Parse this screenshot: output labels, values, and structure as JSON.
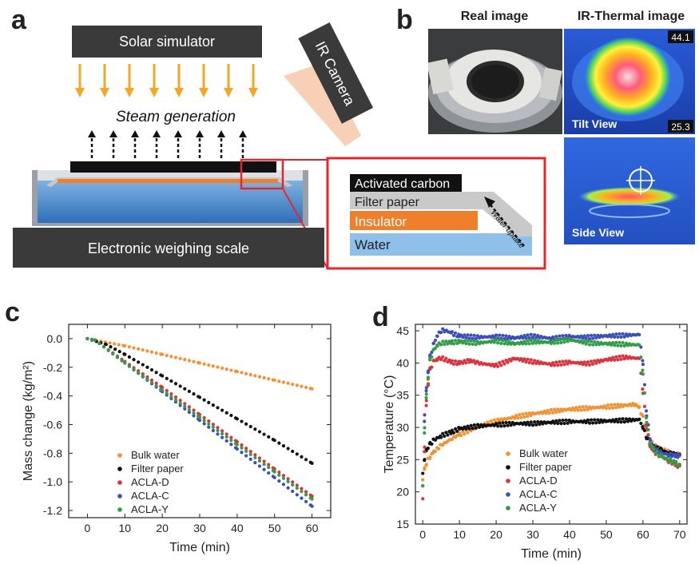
{
  "panel_labels": {
    "a": "a",
    "b": "b",
    "c": "c",
    "d": "d"
  },
  "schematic": {
    "solar_simulator": "Solar simulator",
    "steam_generation": "Steam generation",
    "ir_camera": "IR Camera",
    "weighing_scale": "Electronic weighing scale",
    "inset": {
      "activated_carbon": "Activated carbon",
      "filter_paper": "Filter paper",
      "insulator": "Insulator",
      "water": "Water",
      "water_uptake": "Water uptake"
    },
    "colors": {
      "arrow": "#f5a623",
      "insulator": "#f07f2c",
      "water": "#5b9bd5",
      "inset_border": "#e8252a"
    }
  },
  "photos": {
    "real_image_title": "Real image",
    "ir_image_title": "IR-Thermal image",
    "scale_max": "44.1",
    "scale_min": "25.3",
    "tilt_view": "Tilt View",
    "side_view": "Side View"
  },
  "series_colors": {
    "Bulk water": "#f5922f",
    "Filter paper": "#111111",
    "ACLA-D": "#e0313a",
    "ACLA-C": "#3b4dbf",
    "ACLA-Y": "#2ea043"
  },
  "chart_data": [
    {
      "type": "scatter",
      "panel": "c",
      "xlabel": "Time (min)",
      "ylabel": "Mass change (kg/m²)",
      "xlim": [
        -5,
        65
      ],
      "ylim": [
        -1.25,
        0.1
      ],
      "xticks": [
        0,
        10,
        20,
        30,
        40,
        50,
        60
      ],
      "yticks": [
        0.0,
        -0.2,
        -0.4,
        -0.6,
        -0.8,
        -1.0,
        -1.2
      ],
      "ytick_labels": [
        "0.0",
        "-0.2",
        "-0.4",
        "-0.6",
        "-0.8",
        "-1.0",
        "-1.2"
      ],
      "legend_position": "bottom-left",
      "series": [
        {
          "name": "Bulk water",
          "x": [
            0,
            10,
            20,
            30,
            40,
            50,
            60
          ],
          "y": [
            0.0,
            -0.05,
            -0.11,
            -0.17,
            -0.23,
            -0.29,
            -0.35
          ]
        },
        {
          "name": "Filter paper",
          "x": [
            0,
            5,
            10,
            20,
            30,
            40,
            50,
            60
          ],
          "y": [
            0.0,
            -0.04,
            -0.11,
            -0.26,
            -0.41,
            -0.56,
            -0.71,
            -0.87
          ]
        },
        {
          "name": "ACLA-D",
          "x": [
            0,
            2,
            10,
            20,
            30,
            40,
            50,
            60
          ],
          "y": [
            0.0,
            -0.01,
            -0.16,
            -0.34,
            -0.53,
            -0.72,
            -0.91,
            -1.1
          ]
        },
        {
          "name": "ACLA-C",
          "x": [
            0,
            2,
            10,
            20,
            30,
            40,
            50,
            60
          ],
          "y": [
            0.0,
            -0.01,
            -0.17,
            -0.37,
            -0.57,
            -0.77,
            -0.97,
            -1.17
          ]
        },
        {
          "name": "ACLA-Y",
          "x": [
            0,
            2,
            10,
            20,
            30,
            40,
            50,
            60
          ],
          "y": [
            0.0,
            -0.01,
            -0.17,
            -0.36,
            -0.55,
            -0.74,
            -0.93,
            -1.12
          ]
        }
      ]
    },
    {
      "type": "scatter",
      "panel": "d",
      "xlabel": "Time (min)",
      "ylabel": "Temperature (°C)",
      "xlim": [
        -2,
        72
      ],
      "ylim": [
        15,
        46
      ],
      "xticks": [
        0,
        10,
        20,
        30,
        40,
        50,
        60,
        70
      ],
      "yticks": [
        15,
        20,
        25,
        30,
        35,
        40,
        45
      ],
      "ytick_labels": [
        "15",
        "20",
        "25",
        "30",
        "35",
        "40",
        "45"
      ],
      "legend_position": "bottom-center",
      "series": [
        {
          "name": "Bulk water",
          "x": [
            0,
            0.5,
            1,
            2,
            3,
            5,
            8,
            10,
            15,
            20,
            25,
            30,
            35,
            40,
            45,
            50,
            55,
            58,
            59,
            60,
            61,
            62,
            63,
            65,
            67,
            69,
            70
          ],
          "y": [
            22,
            23.5,
            24.5,
            25.5,
            26.2,
            27.2,
            28.3,
            28.9,
            30.1,
            31.0,
            31.6,
            32.1,
            32.5,
            32.8,
            33.0,
            33.2,
            33.4,
            33.6,
            33.0,
            31.5,
            29.5,
            28.0,
            27.2,
            26.6,
            26.2,
            25.9,
            25.7
          ]
        },
        {
          "name": "Filter paper",
          "x": [
            0,
            0.5,
            1,
            2,
            3,
            5,
            8,
            10,
            15,
            20,
            25,
            30,
            35,
            40,
            45,
            50,
            55,
            59,
            60,
            61,
            62,
            63,
            65,
            67,
            69,
            70
          ],
          "y": [
            23,
            25,
            26.5,
            27.4,
            28.0,
            28.7,
            29.3,
            29.8,
            30.2,
            30.4,
            30.6,
            30.6,
            30.8,
            30.9,
            30.9,
            31.0,
            31.1,
            31.2,
            30.0,
            28.5,
            27.5,
            27.0,
            26.5,
            26.0,
            25.8,
            25.6
          ]
        },
        {
          "name": "ACLA-D",
          "x": [
            0,
            0.5,
            1,
            1.5,
            2,
            3,
            4,
            5,
            8,
            10,
            13,
            15,
            20,
            25,
            30,
            35,
            40,
            45,
            50,
            55,
            59,
            60,
            61,
            62,
            63,
            65,
            67,
            69,
            70
          ],
          "y": [
            19,
            27,
            34,
            37,
            39,
            40.3,
            40.6,
            40.8,
            40.1,
            40.0,
            40.4,
            40.0,
            39.6,
            40.7,
            40.2,
            39.8,
            40.1,
            39.9,
            40.5,
            40.9,
            40.7,
            35.5,
            30.0,
            27.0,
            26.2,
            25.5,
            24.8,
            24.2,
            23.8
          ]
        },
        {
          "name": "ACLA-C",
          "x": [
            0,
            0.5,
            1,
            1.5,
            2,
            3,
            4,
            5,
            6,
            8,
            10,
            15,
            20,
            25,
            30,
            35,
            40,
            45,
            50,
            55,
            59,
            60,
            61,
            62,
            63,
            65,
            67,
            69,
            70
          ],
          "y": [
            21,
            32,
            36,
            39,
            41,
            43,
            44.3,
            45,
            45.1,
            44.6,
            44.2,
            44.0,
            44.1,
            43.9,
            44.2,
            43.8,
            44.1,
            44.0,
            44.2,
            44.3,
            44.4,
            40.0,
            32.0,
            28.0,
            26.8,
            26.0,
            25.8,
            25.6,
            25.5
          ]
        },
        {
          "name": "ACLA-Y",
          "x": [
            0,
            0.5,
            1,
            1.5,
            2,
            3,
            4,
            5,
            8,
            10,
            15,
            20,
            25,
            30,
            35,
            40,
            45,
            50,
            55,
            59,
            60,
            61,
            62,
            63,
            65,
            67,
            69,
            70
          ],
          "y": [
            21,
            30,
            35,
            38,
            40.5,
            42,
            42.8,
            43.1,
            43.2,
            43.3,
            43.1,
            43.4,
            43.0,
            43.3,
            43.2,
            43.6,
            43.1,
            43.0,
            42.9,
            42.8,
            38.5,
            31.0,
            27.5,
            26.5,
            25.5,
            25.0,
            24.5,
            24.0
          ]
        }
      ]
    }
  ]
}
